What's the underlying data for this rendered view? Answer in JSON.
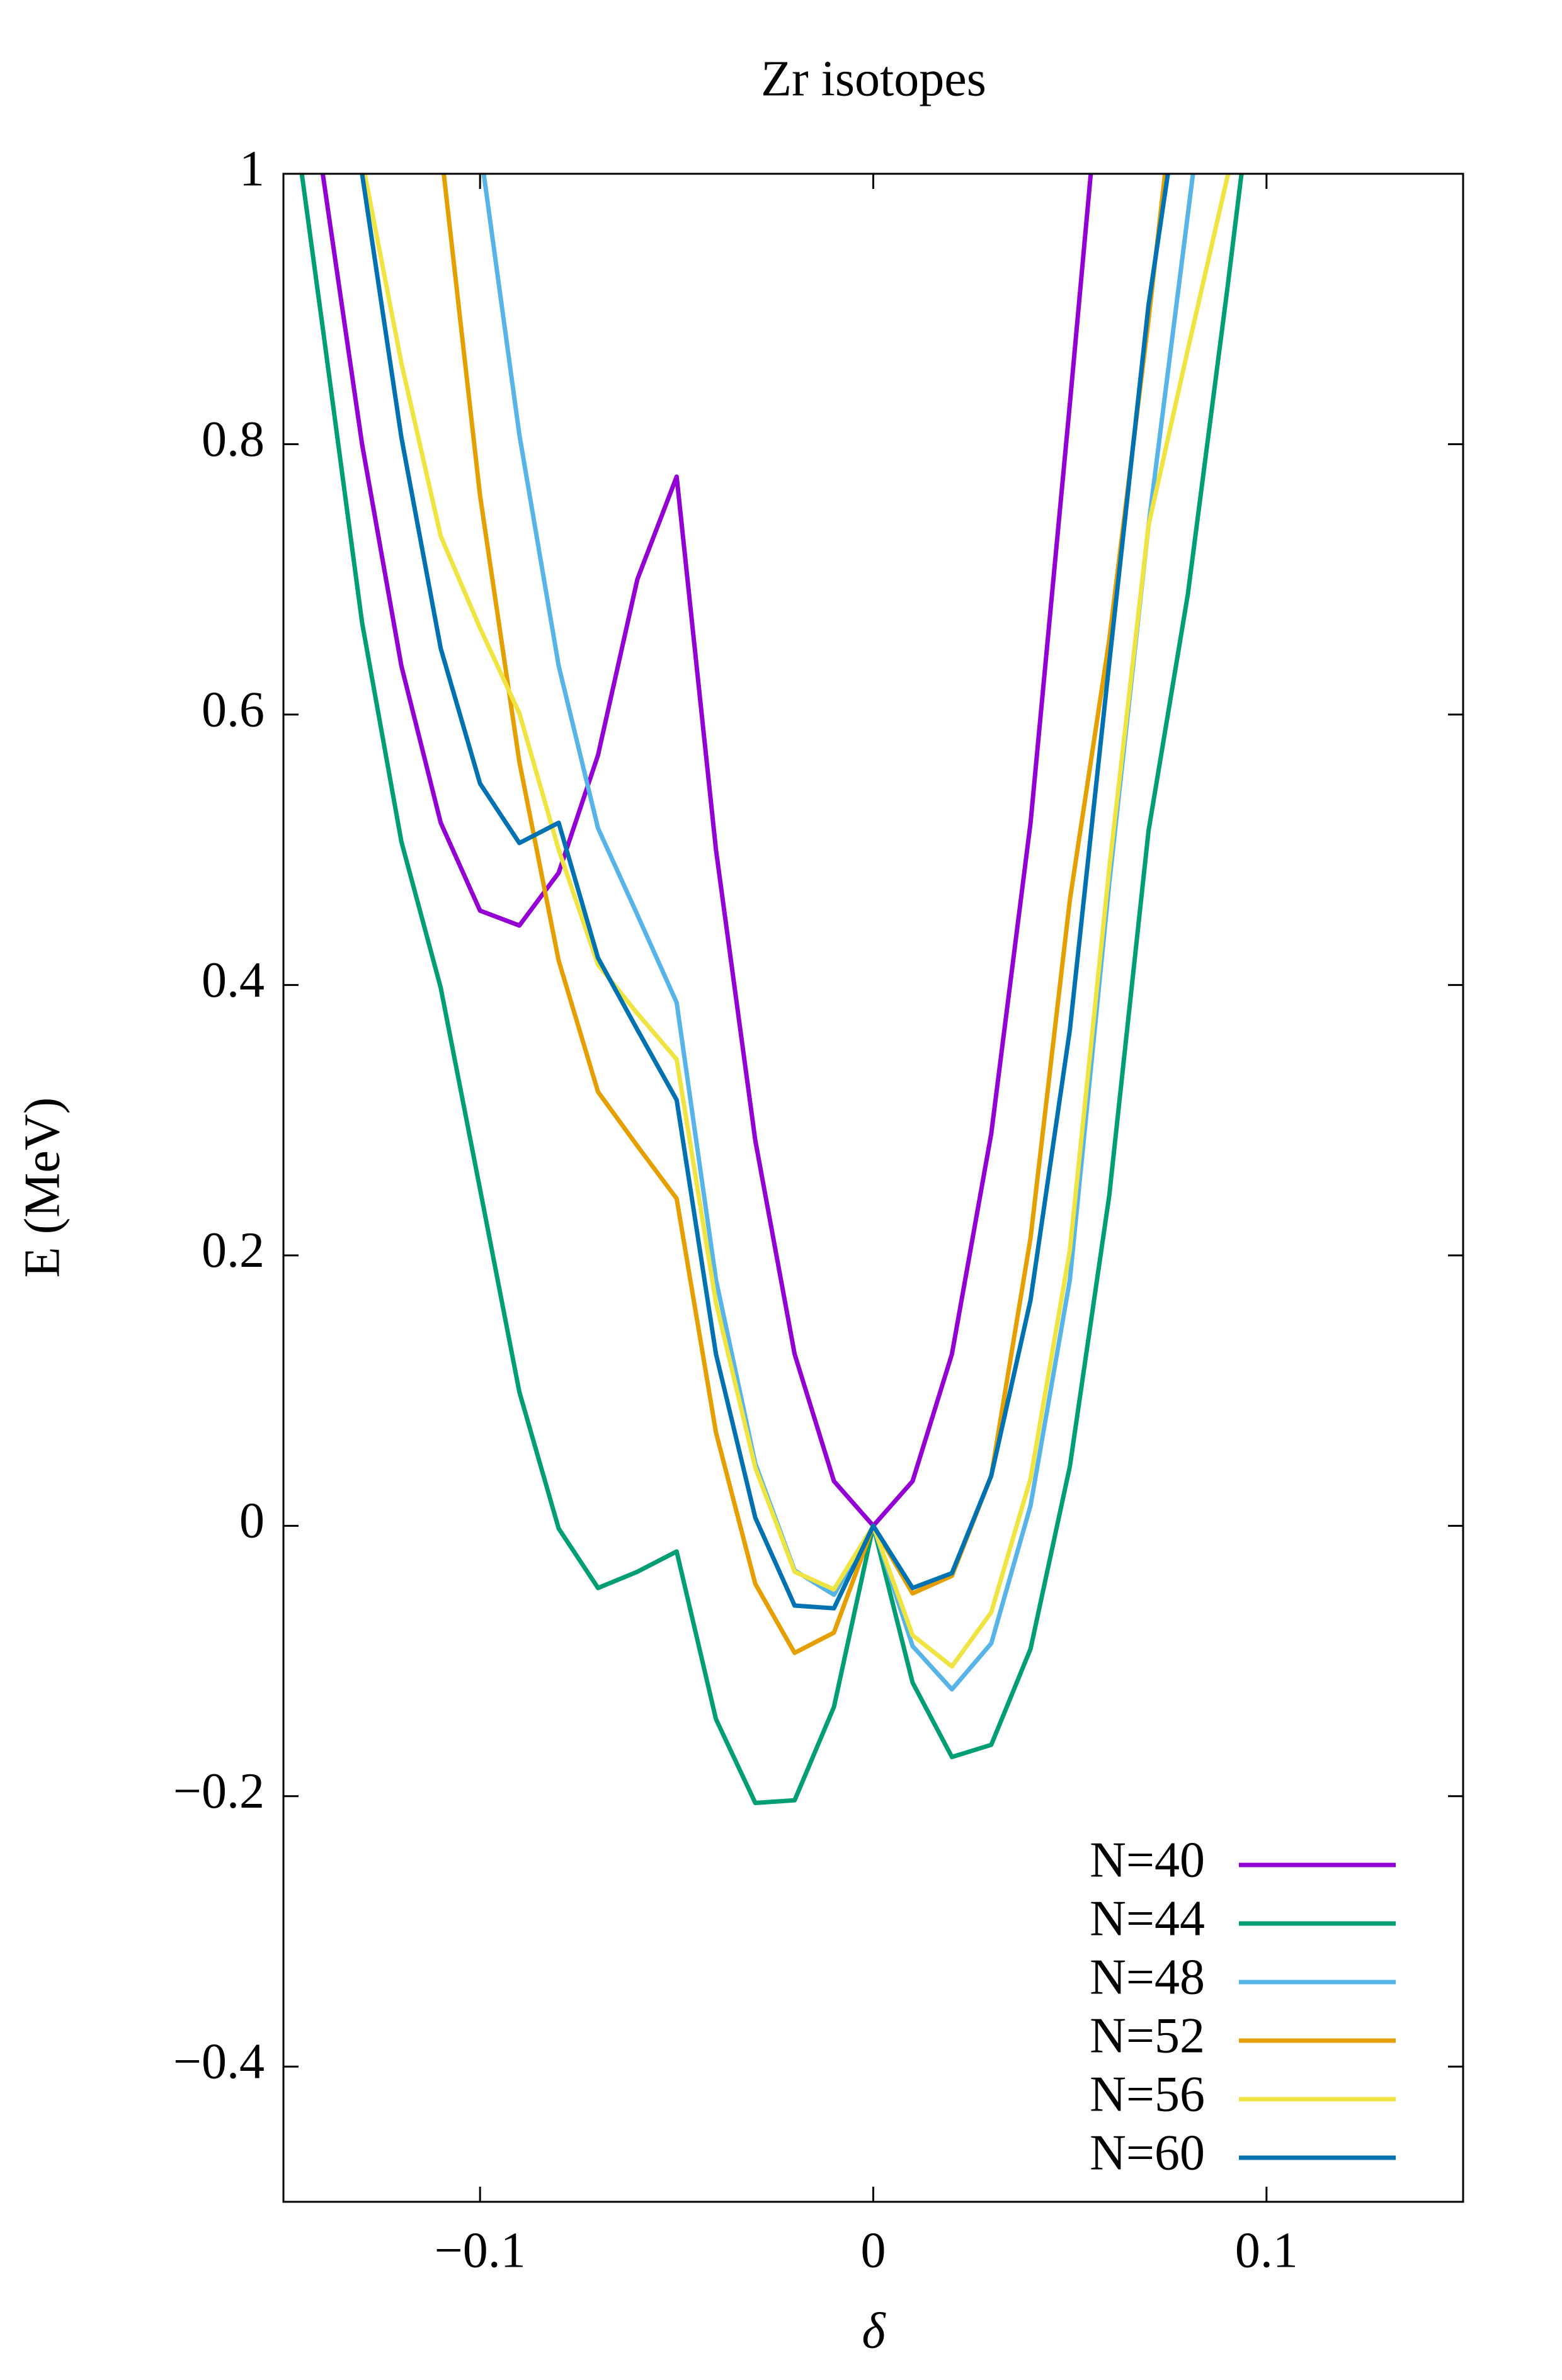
{
  "chart_data": {
    "type": "line",
    "title": "Zr isotopes",
    "xlabel": "δ",
    "ylabel": "E (MeV)",
    "x": [
      -0.15,
      -0.14,
      -0.13,
      -0.12,
      -0.11,
      -0.1,
      -0.09,
      -0.08,
      -0.07,
      -0.06,
      -0.05,
      -0.04,
      -0.03,
      -0.02,
      -0.01,
      0,
      0.01,
      0.02,
      0.03,
      0.04,
      0.05,
      0.06,
      0.07,
      0.08,
      0.09,
      0.1
    ],
    "series": [
      {
        "name": "N=40",
        "color": "#9400d3",
        "values": [
          1.2,
          1.0,
          0.8,
          0.636,
          0.52,
          0.455,
          0.444,
          0.483,
          0.57,
          0.7,
          0.776,
          0.5,
          0.285,
          0.127,
          0.033,
          0,
          0.033,
          0.127,
          0.29,
          0.52,
          0.83,
          1.15,
          null,
          null,
          null,
          null
        ]
      },
      {
        "name": "N=44",
        "color": "#009e73",
        "values": [
          1.1,
          0.886,
          0.668,
          0.506,
          0.398,
          0.249,
          0.099,
          -0.002,
          -0.046,
          -0.034,
          -0.019,
          -0.143,
          -0.205,
          -0.203,
          -0.134,
          0,
          -0.116,
          -0.171,
          -0.162,
          -0.091,
          0.044,
          0.244,
          0.514,
          0.689,
          0.914,
          1.15
        ]
      },
      {
        "name": "N=48",
        "color": "#56b4e9",
        "values": [
          null,
          null,
          null,
          null,
          1.25,
          1.02,
          0.807,
          0.636,
          0.516,
          0.452,
          0.387,
          0.182,
          0.046,
          -0.033,
          -0.051,
          0,
          -0.089,
          -0.121,
          -0.087,
          0.015,
          0.182,
          0.475,
          0.74,
          0.97,
          1.2,
          null
        ]
      },
      {
        "name": "N=52",
        "color": "#e69f00",
        "values": [
          null,
          null,
          null,
          1.3,
          1.02,
          0.762,
          0.565,
          0.418,
          0.321,
          0.281,
          0.242,
          0.069,
          -0.043,
          -0.094,
          -0.079,
          0,
          -0.05,
          -0.037,
          0.037,
          0.213,
          0.463,
          0.655,
          0.892,
          1.15,
          null,
          null
        ]
      },
      {
        "name": "N=56",
        "color": "#f0e442",
        "values": [
          null,
          1.15,
          1.01,
          0.86,
          0.732,
          0.664,
          0.601,
          0.5,
          0.415,
          0.379,
          0.345,
          0.165,
          0.043,
          -0.034,
          -0.047,
          0,
          -0.081,
          -0.104,
          -0.064,
          0.035,
          0.204,
          0.486,
          0.74,
          0.87,
          0.997,
          1.1
        ]
      },
      {
        "name": "N=60",
        "color": "#0072b2",
        "values": [
          null,
          1.2,
          1.0,
          0.805,
          0.649,
          0.549,
          0.505,
          0.52,
          0.42,
          0.367,
          0.315,
          0.127,
          0.006,
          -0.059,
          -0.061,
          0,
          -0.046,
          -0.035,
          0.037,
          0.167,
          0.367,
          0.638,
          0.903,
          1.1,
          null,
          null
        ]
      }
    ],
    "xlim": [
      -0.15,
      0.15
    ],
    "ylim": [
      -0.5,
      1
    ],
    "xticks": [
      {
        "value": -0.1,
        "label": "−0.1"
      },
      0,
      0.1
    ],
    "yticks": [
      {
        "value": -0.4,
        "label": "−0.4"
      },
      {
        "value": -0.2,
        "label": "−0.2"
      },
      0,
      0.2,
      0.4,
      0.6,
      0.8,
      1
    ],
    "legend": "lower right"
  }
}
